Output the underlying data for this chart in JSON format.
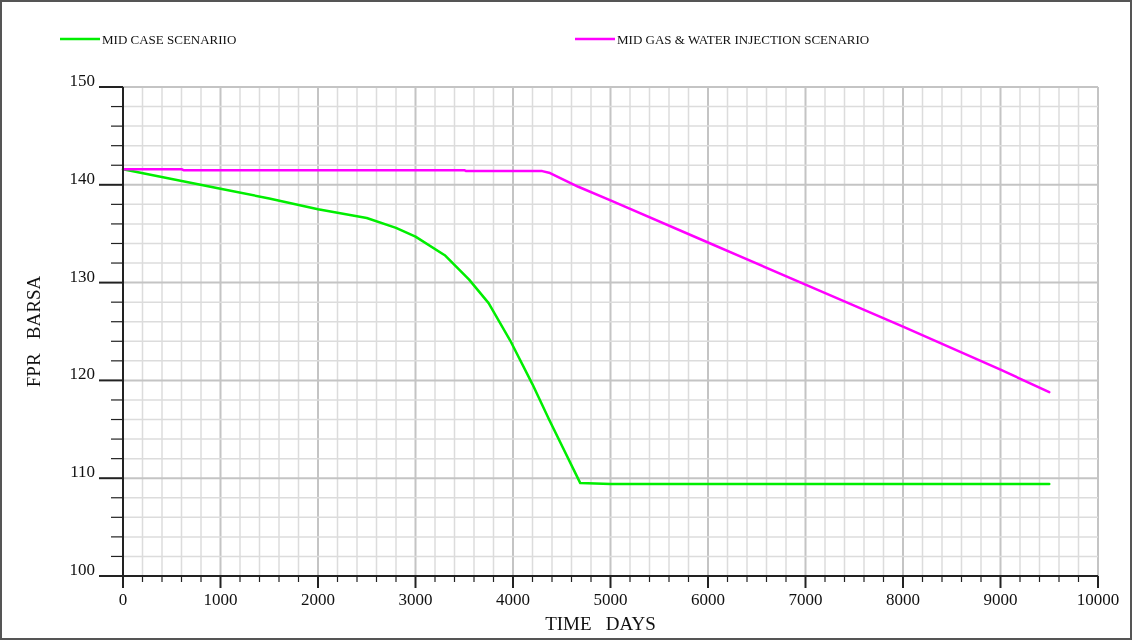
{
  "chart_data": {
    "type": "line",
    "xlabel": "TIME   DAYS",
    "ylabel": "FPR   BARSA",
    "legend": "top",
    "grid": true,
    "line_style": "solid",
    "xlim": [
      0,
      10000
    ],
    "ylim": [
      100,
      150
    ],
    "xticks": [
      0,
      {
        "value": 200,
        "label": null
      },
      {
        "value": 400,
        "label": null
      },
      {
        "value": 600,
        "label": null
      },
      {
        "value": 800,
        "label": null
      },
      1000,
      {
        "value": 1200,
        "label": null
      },
      {
        "value": 1400,
        "label": null
      },
      {
        "value": 1600,
        "label": null
      },
      {
        "value": 1800,
        "label": null
      },
      2000,
      {
        "value": 2200,
        "label": null
      },
      {
        "value": 2400,
        "label": null
      },
      {
        "value": 2600,
        "label": null
      },
      {
        "value": 2800,
        "label": null
      },
      3000,
      {
        "value": 3200,
        "label": null
      },
      {
        "value": 3400,
        "label": null
      },
      {
        "value": 3600,
        "label": null
      },
      {
        "value": 3800,
        "label": null
      },
      4000,
      {
        "value": 4200,
        "label": null
      },
      {
        "value": 4400,
        "label": null
      },
      {
        "value": 4600,
        "label": null
      },
      {
        "value": 4800,
        "label": null
      },
      5000,
      {
        "value": 5200,
        "label": null
      },
      {
        "value": 5400,
        "label": null
      },
      {
        "value": 5600,
        "label": null
      },
      {
        "value": 5800,
        "label": null
      },
      6000,
      {
        "value": 6200,
        "label": null
      },
      {
        "value": 6400,
        "label": null
      },
      {
        "value": 6600,
        "label": null
      },
      {
        "value": 6800,
        "label": null
      },
      7000,
      {
        "value": 7200,
        "label": null
      },
      {
        "value": 7400,
        "label": null
      },
      {
        "value": 7600,
        "label": null
      },
      {
        "value": 7800,
        "label": null
      },
      8000,
      {
        "value": 8200,
        "label": null
      },
      {
        "value": 8400,
        "label": null
      },
      {
        "value": 8600,
        "label": null
      },
      {
        "value": 8800,
        "label": null
      },
      9000,
      {
        "value": 9200,
        "label": null
      },
      {
        "value": 9400,
        "label": null
      },
      {
        "value": 9600,
        "label": null
      },
      {
        "value": 9800,
        "label": null
      },
      10000
    ],
    "yticks": [
      100,
      {
        "value": 102,
        "label": null
      },
      {
        "value": 104,
        "label": null
      },
      {
        "value": 106,
        "label": null
      },
      {
        "value": 108,
        "label": null
      },
      110,
      {
        "value": 112,
        "label": null
      },
      {
        "value": 114,
        "label": null
      },
      {
        "value": 116,
        "label": null
      },
      {
        "value": 118,
        "label": null
      },
      120,
      {
        "value": 122,
        "label": null
      },
      {
        "value": 124,
        "label": null
      },
      {
        "value": 126,
        "label": null
      },
      {
        "value": 128,
        "label": null
      },
      130,
      {
        "value": 132,
        "label": null
      },
      {
        "value": 134,
        "label": null
      },
      {
        "value": 136,
        "label": null
      },
      {
        "value": 138,
        "label": null
      },
      140,
      {
        "value": 142,
        "label": null
      },
      {
        "value": 144,
        "label": null
      },
      {
        "value": 146,
        "label": null
      },
      {
        "value": 148,
        "label": null
      },
      150
    ],
    "series": [
      {
        "name": "MID CASE SCENARIIO",
        "color": "#00ee00",
        "x": [
          0,
          500,
          1000,
          1500,
          2000,
          2500,
          2800,
          3000,
          3300,
          3550,
          3750,
          3970,
          4200,
          4370,
          4690,
          5000,
          6000,
          7000,
          8000,
          9000,
          9500
        ],
        "values": [
          141.6,
          140.6,
          139.6,
          138.6,
          137.5,
          136.6,
          135.6,
          134.7,
          132.8,
          130.3,
          127.9,
          124.1,
          119.6,
          116,
          109.5,
          109.4,
          109.4,
          109.4,
          109.4,
          109.4,
          109.4
        ]
      },
      {
        "name": "MID GAS & WATER INJECTION SCENARIO",
        "color": "#ff00ff",
        "x": [
          0,
          600,
          620,
          3500,
          3520,
          4300,
          4380,
          4670,
          5000,
          6000,
          7000,
          8000,
          9000,
          9500
        ],
        "values": [
          141.6,
          141.6,
          141.5,
          141.5,
          141.4,
          141.4,
          141.2,
          139.8,
          138.4,
          134.1,
          129.8,
          125.5,
          121.1,
          118.8
        ]
      }
    ]
  }
}
